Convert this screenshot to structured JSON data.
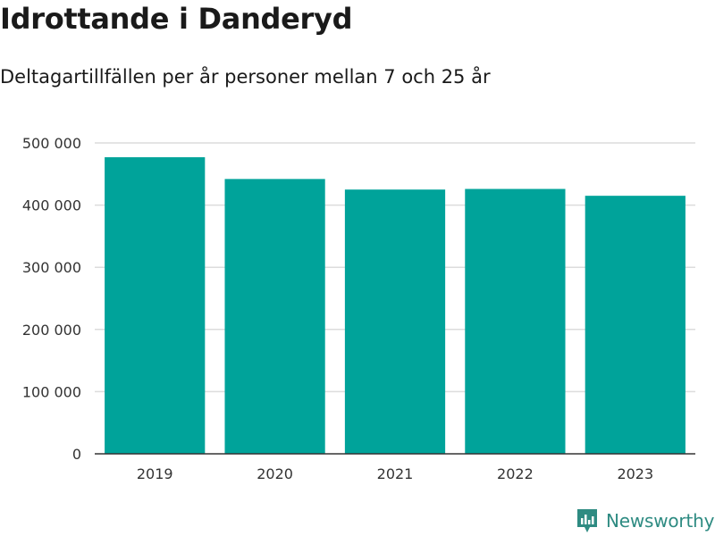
{
  "header": {
    "title": "Idrottande i Danderyd",
    "subtitle": "Deltagartillfällen per år personer mellan 7 och 25 år"
  },
  "chart_data": {
    "type": "bar",
    "categories": [
      "2019",
      "2020",
      "2021",
      "2022",
      "2023"
    ],
    "values": [
      477000,
      442000,
      425000,
      426000,
      415000
    ],
    "ylim": [
      0,
      500000
    ],
    "yticks": [
      0,
      100000,
      200000,
      300000,
      400000,
      500000
    ],
    "ytick_labels": [
      "0",
      "100 000",
      "200 000",
      "300 000",
      "400 000",
      "500 000"
    ],
    "xlabel": "",
    "ylabel": "",
    "grid": true,
    "bar_color": "#00a39a"
  },
  "branding": {
    "name": "Newsworthy",
    "icon": "newsworthy-logo-icon",
    "color": "#2e8b82"
  }
}
